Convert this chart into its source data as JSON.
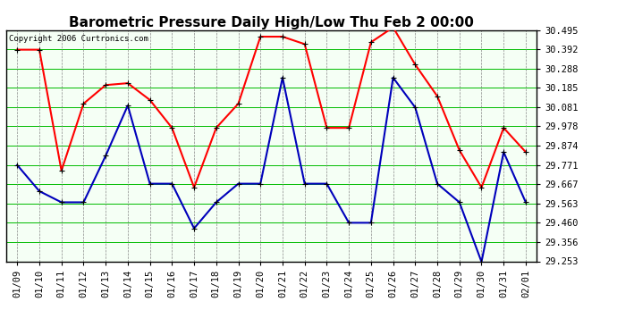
{
  "title": "Barometric Pressure Daily High/Low Thu Feb 2 00:00",
  "copyright": "Copyright 2006 Curtronics.com",
  "dates": [
    "01/09",
    "01/10",
    "01/11",
    "01/12",
    "01/13",
    "01/14",
    "01/15",
    "01/16",
    "01/17",
    "01/18",
    "01/19",
    "01/20",
    "01/21",
    "01/22",
    "01/23",
    "01/24",
    "01/25",
    "01/26",
    "01/27",
    "01/28",
    "01/29",
    "01/30",
    "01/31",
    "02/01"
  ],
  "high_values": [
    30.39,
    30.39,
    29.74,
    30.1,
    30.2,
    30.21,
    30.12,
    29.97,
    29.65,
    29.97,
    30.1,
    30.46,
    30.46,
    30.42,
    29.97,
    29.97,
    30.43,
    30.51,
    30.31,
    30.14,
    29.85,
    29.65,
    29.97,
    29.84
  ],
  "low_values": [
    29.77,
    29.63,
    29.57,
    29.57,
    29.82,
    30.09,
    29.67,
    29.67,
    29.43,
    29.57,
    29.67,
    29.67,
    30.24,
    29.67,
    29.67,
    29.46,
    29.46,
    30.24,
    30.08,
    29.67,
    29.57,
    29.25,
    29.84,
    29.57
  ],
  "high_color": "#ff0000",
  "low_color": "#0000bb",
  "bg_color": "#ffffff",
  "plot_bg_color": "#f5fff5",
  "horiz_grid_color": "#00bb00",
  "vert_grid_color": "#888888",
  "title_color": "#000000",
  "ymin": 29.253,
  "ymax": 30.495,
  "yticks": [
    29.253,
    29.356,
    29.46,
    29.563,
    29.667,
    29.771,
    29.874,
    29.978,
    30.081,
    30.185,
    30.288,
    30.392,
    30.495
  ],
  "marker": "+",
  "marker_size": 5,
  "linewidth": 1.5,
  "title_fontsize": 11,
  "tick_fontsize": 7.5
}
